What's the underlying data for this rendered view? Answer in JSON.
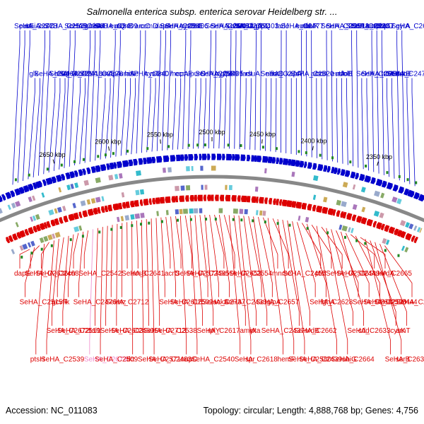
{
  "title": "Salmonella enterica subsp. enterica serovar Heidelberg str. ...",
  "footer": {
    "accession": "Accession: NC_011083",
    "summary": "Topology: circular; Length: 4,888,768 bp; Genes: 4,756"
  },
  "colors": {
    "forward": "#0000cc",
    "reverse": "#dd0000",
    "highlight": "#ee88cc",
    "backbone": "#888888",
    "marker": "#228822"
  },
  "ticks": [
    "2650 kbp",
    "2600 kbp",
    "2550 kbp",
    "2500 kbp",
    "2450 kbp",
    "2400 kbp",
    "2350 kbp"
  ],
  "top_genes": [
    "SeHA_C2773",
    "SeHA_C2771",
    "guaA",
    "uraA",
    "dapA",
    "purC",
    "SeHA_C2751",
    "SeHA_C2747",
    "eutH",
    "eutA",
    "eutB",
    "eutE",
    "eutC",
    "eutP",
    "eutQ",
    "cysT",
    "cysP",
    "cysM",
    "ligA",
    "xapA",
    "SeHA_C2668",
    "SeHA_C2666",
    "SeHA_C2663",
    "glk",
    "SeHA_C2660",
    "sixA",
    "aroC",
    "mepA",
    "SeHA_C2646",
    "fadI",
    "fadJ",
    "accD",
    "SeHA_C2620",
    "truA",
    "purF",
    "hisQ",
    "hisM",
    "hisP",
    "SeHA_C2581",
    "SeHA_C2589",
    "ulaA",
    "nuoC",
    "nuoF",
    "nuoB",
    "nuoN",
    "nuoE",
    "SeHA_C2529",
    "SeHA_C2528",
    "menB",
    "menC",
    "menE",
    "glpT",
    "glpQ",
    "SeHA_C2520",
    "SeHA_C2513",
    "SeHA_C2544",
    "gyrA",
    "SeHA_C2467",
    "ccmB",
    "ndpA",
    "ccmD",
    "ccmF",
    "SeHA_C2462",
    "rsuA",
    "SeHA_C2477",
    "bcr",
    "SeHA_C2457",
    "SeHA_C2478",
    "maiA",
    "SeHA_C2410",
    "SeHA_C2409",
    "SeHA_C2407",
    "SeHA_C2406",
    "SeHA_C2405",
    "SeHA_C2403",
    "fruB",
    "fruK",
    "folE",
    "pbpG"
  ],
  "bottom_genes": [
    "dapE",
    "gcvR",
    "tal1",
    "tkt",
    "acrD",
    "SeHA_C2737",
    "amiA",
    "hemF",
    "ptsI",
    "SeHA_C2682",
    "cysK",
    "ptsH",
    "crr",
    "SeHA_C2712",
    "SeHA_C2713",
    "nupC",
    "SeHA_C2653",
    "SeHA_C2657",
    "SeHA_C2662",
    "SeHA_C2664",
    "SeHA_C2665",
    "SeHA_C2671",
    "SeHA_C2672",
    "SeHA_C2674",
    "SeHA_C2641",
    "SeHA_C2616",
    "SeHA_C2617",
    "SeHA_C2618",
    "mnmC",
    "SeHA_C2628",
    "SeHA_C2633",
    "SeHA_C2634",
    "SeHA_C2636",
    "flk",
    "SeHA_C2603",
    "SeHA_C2571",
    "SeHA_C2577",
    "ackA",
    "pta",
    "SeHA_C2580",
    "SeHA_C2586",
    "SeHA_C2590",
    "arnT",
    "SeHA_C2539",
    "SeHA_C2542",
    "rnz",
    "SeHA_C2538",
    "SeHA_C2540",
    "SeHA_C2554",
    "glpA",
    "nrdB",
    "ubiG",
    "nrdA",
    "SeHA_C2515",
    "SeHA_C2519",
    "SeHA_C2509",
    "rcsB",
    "SeHA_C2502",
    "rplY",
    "spr",
    "SeHA_C2455",
    "fghA",
    "cdd",
    "serB",
    "SeHA_C2468",
    "SeHA_C2476",
    "SeHA_C2480",
    "SeHA_C2483",
    "SeHA_C2485",
    "SeHA_C2433",
    "SeHA_C2437",
    "SeHA_C2439",
    "SeHA_C2443",
    "SeHA_C2444"
  ]
}
